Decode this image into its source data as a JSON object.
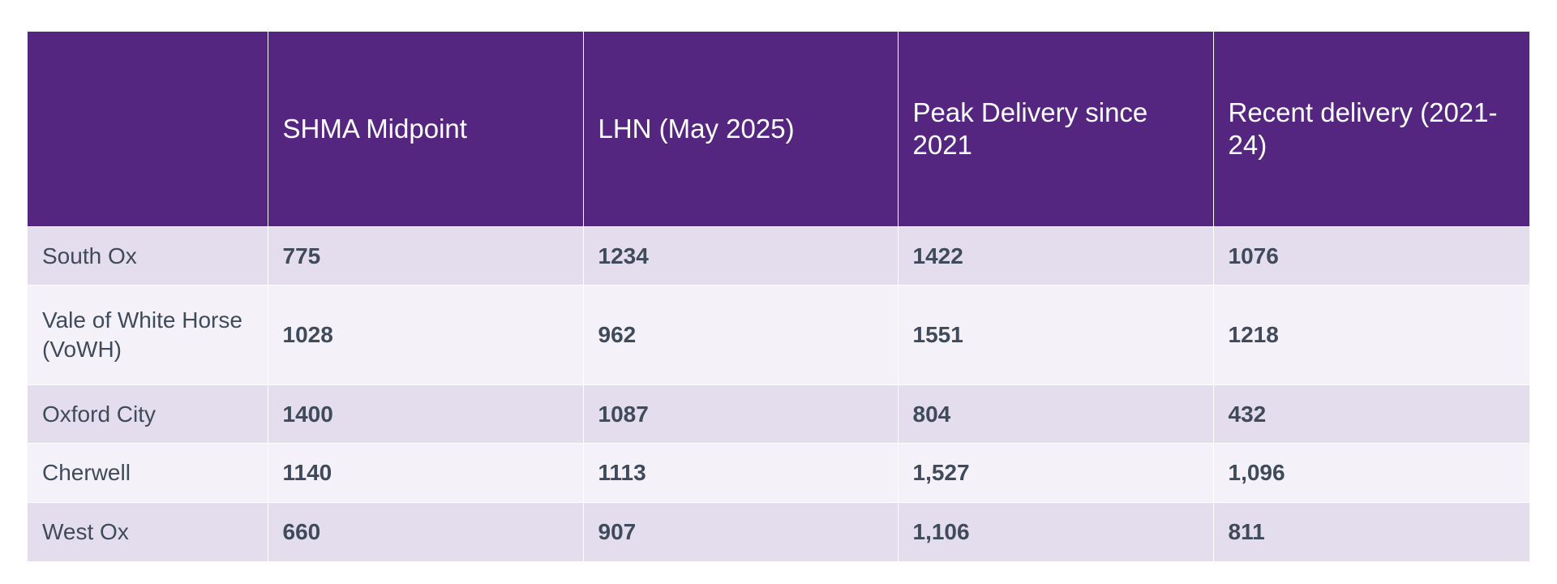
{
  "table": {
    "headers": [
      "",
      "SHMA Midpoint",
      "LHN (May 2025)",
      "Peak Delivery since 2021",
      "Recent delivery (2021-24)"
    ],
    "rows": [
      [
        "South Ox",
        "775",
        "1234",
        "1422",
        "1076"
      ],
      [
        "Vale of White Horse (VoWH)",
        "1028",
        "962",
        "1551",
        "1218"
      ],
      [
        "Oxford City",
        "1400",
        "1087",
        "804",
        "432"
      ],
      [
        "Cherwell",
        "1140",
        "1113",
        "1,527",
        "1,096"
      ],
      [
        "West Ox",
        "660",
        "907",
        "1,106",
        "811"
      ]
    ]
  },
  "colors": {
    "header_bg": "#55267f",
    "row_odd": "#e4dded",
    "row_even": "#f4f2f8",
    "text": "#3f4a5a"
  }
}
